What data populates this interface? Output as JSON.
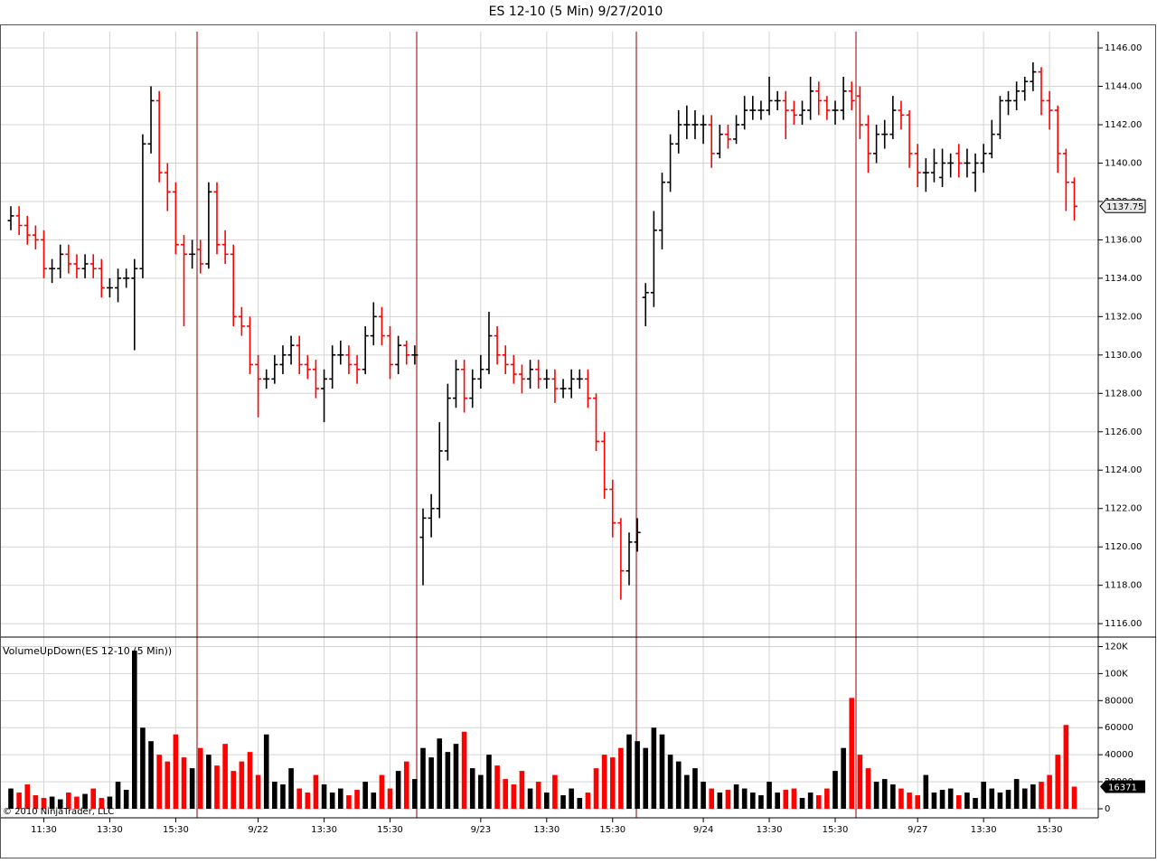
{
  "title": "ES 12-10 (5 Min)  9/27/2010",
  "copyright": "© 2010 NinjaTrader, LLC",
  "chart_data": [
    {
      "type": "ohlc",
      "series": [
        {
          "open": [
            1137,
            1137.25,
            1136.75,
            1136.25,
            1136,
            1134.5,
            1134.5,
            1135.25,
            1134.75,
            1134.5,
            1134.75,
            1134.5,
            1133.5,
            1133.5,
            1134,
            1134,
            1134.5,
            1141,
            1143.25,
            1139.5,
            1138.5,
            1135.75,
            1135.25,
            1135.5,
            1134.75,
            1138.5,
            1135.75,
            1135.25,
            1132,
            1131.5,
            1129.5,
            1128.75,
            1128.75,
            1129.5,
            1130,
            1130.5,
            1129.5,
            1129.25,
            1128.25,
            1128.75,
            1130,
            1130,
            1129.5,
            1129.25,
            1131,
            1132,
            1131,
            1129.5,
            1130.5,
            1130,
            1120.5,
            1121.5,
            1122,
            1125,
            1127.75,
            1129.25,
            1127.75,
            1128.75,
            1129.25,
            1131,
            1130,
            1129.5,
            1129,
            1128.75,
            1129.25,
            1128.75,
            1128.75,
            1128.25,
            1128.25,
            1128.75,
            1128.75,
            1127.75,
            1125.5,
            1123,
            1121.25,
            1118.75,
            1120.25,
            1133,
            1133.25,
            1136.5,
            1139,
            1141,
            1142,
            1142,
            1142,
            1142,
            1140.5,
            1141.5,
            1141.25,
            1142,
            1142.75,
            1142.75,
            1142.75,
            1143.25,
            1143.25,
            1142.75,
            1142.5,
            1142.75,
            1143.75,
            1143.25,
            1142.75,
            1142.75,
            1143.75,
            1143.5,
            1142,
            1140.5,
            1141.5,
            1141.5,
            1142.75,
            1142.5,
            1140.5,
            1139.5,
            1139.5,
            1139.25,
            1140,
            1140.5,
            1140,
            1139.5,
            1140,
            1140.5,
            1141.5,
            1143.25,
            1143.25,
            1143.75,
            1144.25,
            1144.75,
            1143.25,
            1142.75,
            1140.5,
            1139
          ],
          "high": [
            1137.75,
            1137.75,
            1137.25,
            1136.75,
            1136.5,
            1135,
            1135.75,
            1135.75,
            1135.25,
            1135.25,
            1135.25,
            1135,
            1134,
            1134.5,
            1134.5,
            1135,
            1141.5,
            1144,
            1143.75,
            1140,
            1139,
            1136.25,
            1136,
            1136,
            1139,
            1139,
            1136.5,
            1135.75,
            1132.5,
            1132,
            1130,
            1129.25,
            1130,
            1130.5,
            1131,
            1131,
            1130,
            1129.75,
            1129.25,
            1130.5,
            1130.75,
            1130.5,
            1130,
            1131.5,
            1132.75,
            1132.5,
            1131.5,
            1131,
            1130.75,
            1130.5,
            1122,
            1122.75,
            1126.5,
            1128.5,
            1129.75,
            1129.75,
            1129.25,
            1130,
            1132.25,
            1131.5,
            1130.5,
            1130,
            1129.5,
            1129.75,
            1129.75,
            1129.25,
            1129.25,
            1128.75,
            1129.25,
            1129.25,
            1129.25,
            1128,
            1126,
            1123.5,
            1121.5,
            1120.75,
            1121.5,
            1133.75,
            1137.5,
            1139.5,
            1141.5,
            1142.75,
            1143,
            1142.75,
            1142.5,
            1142.5,
            1142,
            1142,
            1142.5,
            1143.5,
            1143.5,
            1143.25,
            1144.5,
            1143.75,
            1143.75,
            1143.25,
            1143.25,
            1144.5,
            1144.25,
            1143.5,
            1143.25,
            1144.5,
            1144.25,
            1144,
            1142.5,
            1142,
            1142.25,
            1143.5,
            1143.25,
            1142.75,
            1141,
            1140.25,
            1140.75,
            1140.75,
            1140.5,
            1141,
            1140.75,
            1140.5,
            1141,
            1142.25,
            1143.5,
            1143.75,
            1144.25,
            1144.5,
            1145.25,
            1145,
            1143.75,
            1143,
            1140.75,
            1139.25
          ],
          "low": [
            1136.5,
            1136.25,
            1135.75,
            1135.5,
            1134,
            1133.75,
            1134,
            1134.25,
            1134,
            1134,
            1134,
            1133,
            1133,
            1132.75,
            1133.5,
            1130.25,
            1134,
            1140.5,
            1139,
            1137.5,
            1135.25,
            1131.5,
            1134.5,
            1134.25,
            1134.5,
            1135.25,
            1134.75,
            1131.5,
            1131,
            1129,
            1126.75,
            1128.25,
            1128.5,
            1129,
            1129.5,
            1129,
            1128.75,
            1127.75,
            1126.5,
            1128.25,
            1129.5,
            1129,
            1128.5,
            1129,
            1130.5,
            1130.5,
            1128.75,
            1129,
            1129.5,
            1129.5,
            1118,
            1120.5,
            1121.5,
            1124.5,
            1127.25,
            1127,
            1127.25,
            1128.25,
            1129,
            1129.5,
            1129,
            1128.5,
            1128,
            1128.25,
            1128.25,
            1128.25,
            1127.5,
            1127.75,
            1127.75,
            1128.25,
            1127.25,
            1125,
            1122.5,
            1120.5,
            1117.25,
            1118,
            1119.75,
            1131.5,
            1132.5,
            1135.5,
            1138.5,
            1140.5,
            1141.25,
            1141.25,
            1141,
            1139.75,
            1140.25,
            1140.75,
            1141,
            1141.75,
            1142.25,
            1142.25,
            1142.5,
            1142.75,
            1141.25,
            1142,
            1142,
            1142.25,
            1142.5,
            1142.25,
            1142,
            1142.25,
            1142.75,
            1141.25,
            1139.5,
            1140,
            1140.75,
            1141.25,
            1141.75,
            1139.75,
            1138.75,
            1138.5,
            1139,
            1138.75,
            1139.25,
            1139.25,
            1139.25,
            1138.5,
            1139.5,
            1140.25,
            1141.25,
            1142.5,
            1142.75,
            1143.25,
            1143.75,
            1142.5,
            1141.75,
            1139.5,
            1137.5,
            1137
          ],
          "close": [
            1137.25,
            1136.75,
            1136.25,
            1136,
            1134.5,
            1134.5,
            1135.25,
            1134.75,
            1134.5,
            1134.75,
            1134.5,
            1133.5,
            1133.5,
            1134,
            1134,
            1134.5,
            1141,
            1143.25,
            1139.5,
            1138.5,
            1135.75,
            1135.25,
            1135.25,
            1134.75,
            1138.5,
            1135.75,
            1135.25,
            1132,
            1131.5,
            1129.5,
            1128.75,
            1128.75,
            1129.5,
            1130,
            1130.5,
            1129.5,
            1129.25,
            1128.25,
            1128.75,
            1130,
            1130,
            1129.5,
            1129.25,
            1131,
            1132,
            1131,
            1129.5,
            1130.5,
            1130,
            1130,
            1121.5,
            1122,
            1125,
            1127.75,
            1129.25,
            1127.75,
            1128.75,
            1129.25,
            1131,
            1130,
            1129.5,
            1129,
            1128.75,
            1129.25,
            1128.75,
            1128.75,
            1128.25,
            1128.25,
            1128.75,
            1128.75,
            1127.75,
            1125.5,
            1123,
            1121.25,
            1118.75,
            1120.25,
            1120.75,
            1133.25,
            1136.5,
            1139,
            1141,
            1142,
            1142,
            1142,
            1142,
            1140.5,
            1141.5,
            1141.25,
            1142,
            1142.75,
            1142.75,
            1142.75,
            1143.25,
            1143.25,
            1142.75,
            1142.5,
            1142.75,
            1143.75,
            1143.25,
            1142.75,
            1142.75,
            1143.75,
            1143.25,
            1142,
            1140.5,
            1141.5,
            1141.5,
            1142.75,
            1142.5,
            1140.5,
            1139.5,
            1139.5,
            1140,
            1140,
            1140,
            1140,
            1140,
            1140,
            1140.5,
            1141.5,
            1143.25,
            1143.25,
            1143.75,
            1144.25,
            1144.75,
            1143.25,
            1142.75,
            1140.5,
            1139,
            1137.75
          ]
        }
      ],
      "up_color": "#000000",
      "down_color": "#ff0000",
      "ylim": [
        1115.3,
        1146.85
      ],
      "yticks": [
        {
          "value": 1116,
          "label": "1116.00"
        },
        {
          "value": 1118,
          "label": "1118.00"
        },
        {
          "value": 1120,
          "label": "1120.00"
        },
        {
          "value": 1122,
          "label": "1122.00"
        },
        {
          "value": 1124,
          "label": "1124.00"
        },
        {
          "value": 1126,
          "label": "1126.00"
        },
        {
          "value": 1128,
          "label": "1128.00"
        },
        {
          "value": 1130,
          "label": "1130.00"
        },
        {
          "value": 1132,
          "label": "1132.00"
        },
        {
          "value": 1134,
          "label": "1134.00"
        },
        {
          "value": 1136,
          "label": "1136.00"
        },
        {
          "value": 1138,
          "label": "1138.00"
        },
        {
          "value": 1140,
          "label": "1140.00"
        },
        {
          "value": 1142,
          "label": "1142.00"
        },
        {
          "value": 1144,
          "label": "1144.00"
        },
        {
          "value": 1146,
          "label": "1146.00"
        }
      ],
      "grid": true
    },
    {
      "type": "bar",
      "title": "VolumeUpDown(ES 12-10 (5 Min))",
      "categories": [
        null,
        null,
        null,
        null,
        "11:30",
        null,
        null,
        null,
        null,
        null,
        null,
        null,
        "13:30",
        null,
        null,
        null,
        null,
        null,
        null,
        null,
        "15:30",
        null,
        null,
        null,
        null,
        null,
        null,
        null,
        null,
        null,
        "9/22",
        null,
        null,
        null,
        null,
        null,
        null,
        null,
        "13:30",
        null,
        null,
        null,
        null,
        null,
        null,
        null,
        "15:30",
        null,
        null,
        null,
        null,
        null,
        null,
        null,
        null,
        null,
        null,
        "9/23",
        null,
        null,
        null,
        null,
        null,
        null,
        null,
        "13:30",
        null,
        null,
        null,
        null,
        null,
        null,
        null,
        "15:30",
        null,
        null,
        null,
        null,
        null,
        null,
        null,
        null,
        null,
        null,
        "9/24",
        null,
        null,
        null,
        null,
        null,
        null,
        null,
        "13:30",
        null,
        null,
        null,
        null,
        null,
        null,
        null,
        "15:30",
        null,
        null,
        null,
        null,
        null,
        null,
        null,
        null,
        null,
        "9/27",
        null,
        null,
        null,
        null,
        null,
        null,
        null,
        "13:30",
        null,
        null,
        null,
        null,
        null,
        null,
        null,
        "15:30",
        null,
        null,
        null
      ],
      "values": [
        15000,
        12000,
        18000,
        10000,
        8000,
        9000,
        7000,
        12000,
        9000,
        11000,
        15000,
        8000,
        9000,
        20000,
        14000,
        117000,
        60000,
        50000,
        40000,
        35000,
        55000,
        38000,
        30000,
        45000,
        40000,
        32000,
        48000,
        28000,
        35000,
        42000,
        25000,
        55000,
        20000,
        18000,
        30000,
        15000,
        12000,
        25000,
        18000,
        12000,
        15000,
        10000,
        14000,
        20000,
        12000,
        25000,
        15000,
        28000,
        35000,
        22000,
        45000,
        38000,
        52000,
        42000,
        48000,
        57000,
        30000,
        25000,
        40000,
        32000,
        22000,
        18000,
        28000,
        15000,
        20000,
        12000,
        25000,
        10000,
        15000,
        8000,
        12000,
        30000,
        40000,
        38000,
        45000,
        55000,
        50000,
        45000,
        60000,
        55000,
        40000,
        35000,
        25000,
        30000,
        20000,
        15000,
        12000,
        14000,
        18000,
        15000,
        12000,
        10000,
        20000,
        12000,
        14000,
        15000,
        8000,
        12000,
        10000,
        15000,
        28000,
        45000,
        82000,
        40000,
        30000,
        20000,
        22000,
        18000,
        15000,
        12000,
        10000,
        25000,
        12000,
        14000,
        15000,
        10000,
        12000,
        8000,
        20000,
        15000,
        12000,
        14000,
        22000,
        15000,
        18000,
        20000,
        25000,
        40000,
        62000,
        16371
      ],
      "ylim": [
        0,
        127000
      ],
      "yticks": [
        0,
        20000,
        40000,
        60000,
        80000,
        {
          "value": 100000,
          "label": "100K"
        },
        {
          "value": 120000,
          "label": "120K"
        }
      ],
      "grid": true
    }
  ]
}
